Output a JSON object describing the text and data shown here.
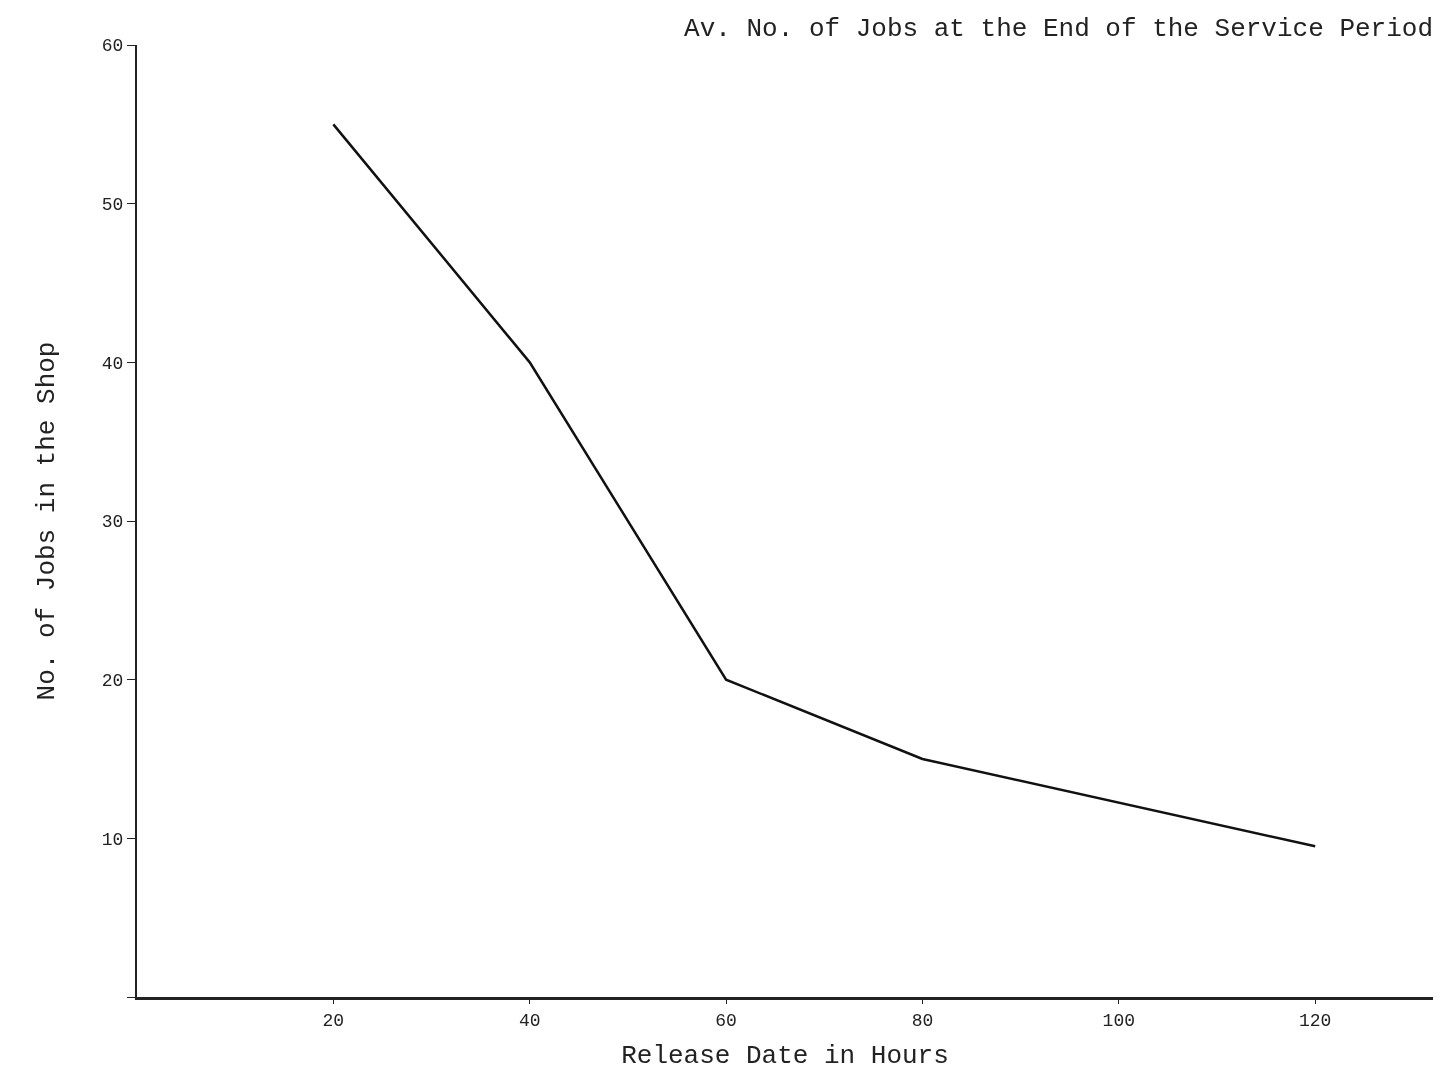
{
  "chart_data": {
    "type": "line",
    "title": "Av. No. of Jobs at the End of the Service Period",
    "xlabel": "Release Date in Hours",
    "ylabel": "No. of Jobs in the Shop",
    "x": [
      20,
      40,
      60,
      80,
      120
    ],
    "series": [
      {
        "color": "#111111",
        "values": [
          55,
          40,
          20,
          15,
          9.5
        ]
      }
    ],
    "xlim": [
      0,
      132
    ],
    "xticks": [
      20,
      40,
      60,
      80,
      100,
      120
    ],
    "ylim": [
      0,
      60
    ],
    "yticks": [
      {
        "value": 0,
        "label": null
      },
      10,
      20,
      30,
      40,
      50,
      60
    ],
    "marker": "none",
    "line_style": "solid"
  }
}
